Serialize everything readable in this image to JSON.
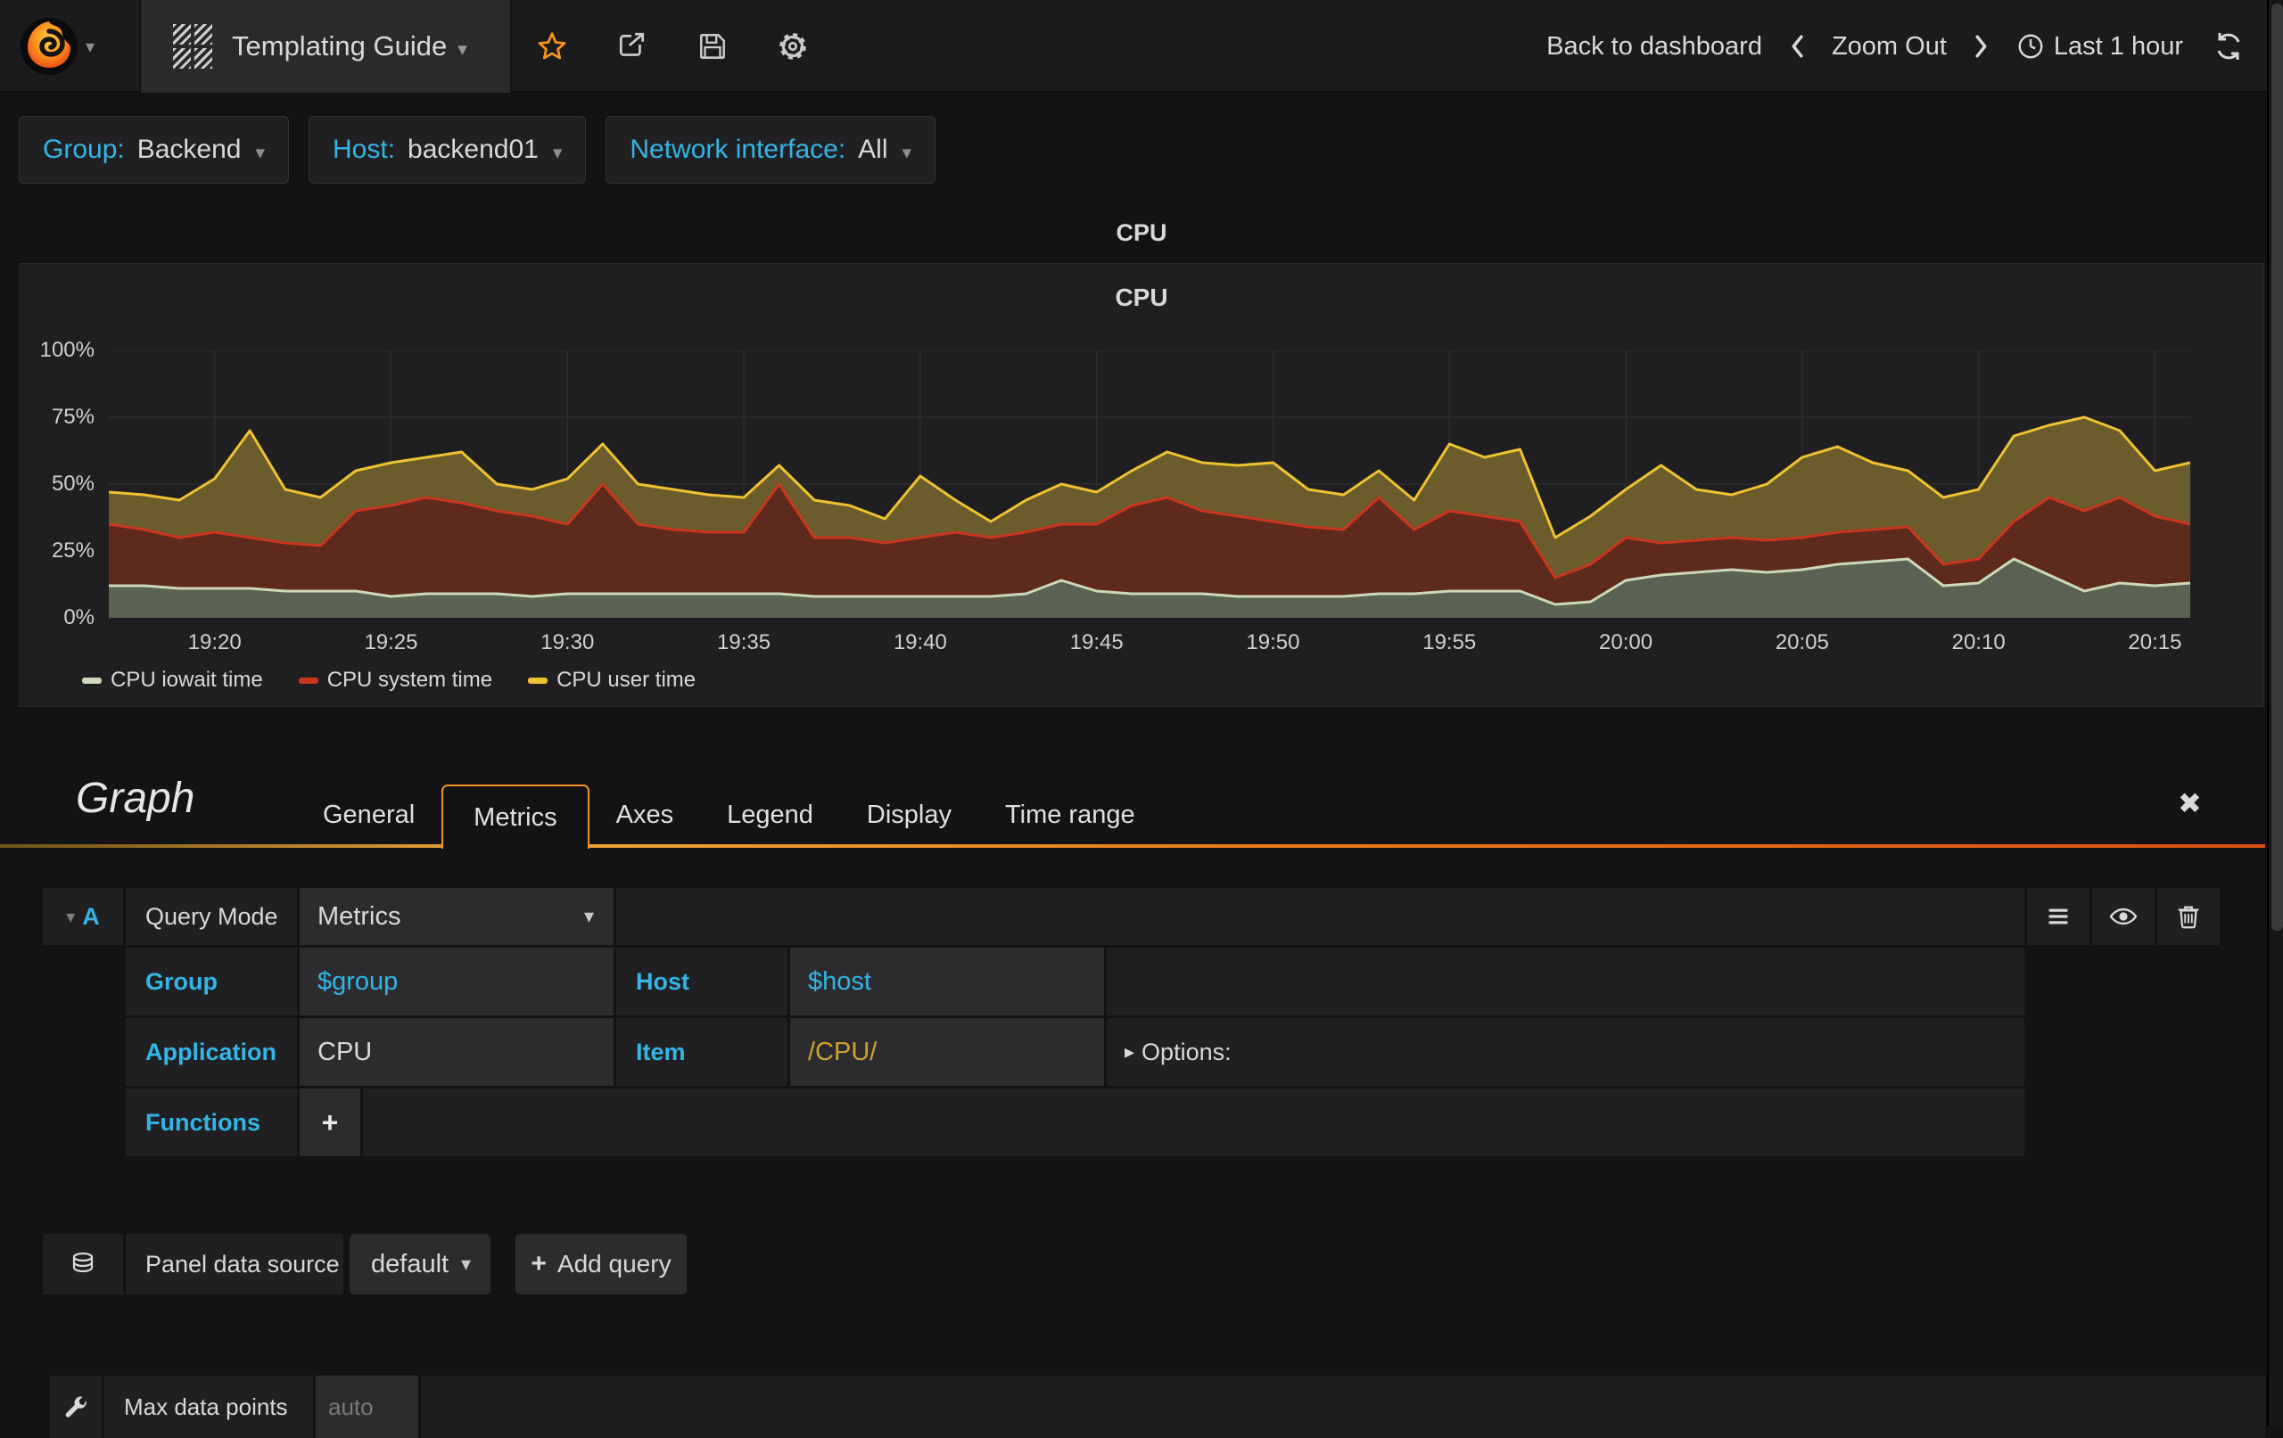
{
  "navbar": {
    "title": "Templating Guide",
    "back_to_dashboard": "Back to dashboard",
    "zoom_out": "Zoom Out",
    "time_range": "Last 1 hour"
  },
  "variables": [
    {
      "label": "Group:",
      "value": "Backend"
    },
    {
      "label": "Host:",
      "value": "backend01"
    },
    {
      "label": "Network interface:",
      "value": "All"
    }
  ],
  "panel": {
    "title": "CPU"
  },
  "chart_data": {
    "type": "area",
    "stacked": true,
    "title": "CPU",
    "ylim": [
      0,
      100
    ],
    "y_unit": "percent",
    "grid": true,
    "legend_position": "bottom",
    "grid_color": "#2d2d2f",
    "axis_color": "#434346",
    "x_range": [
      "19:17",
      "20:16"
    ],
    "x_tick_labels": [
      "19:20",
      "19:25",
      "19:30",
      "19:35",
      "19:40",
      "19:45",
      "19:50",
      "19:55",
      "20:00",
      "20:05",
      "20:10",
      "20:15"
    ],
    "x_tick_offsets_min": [
      3,
      8,
      13,
      18,
      23,
      28,
      33,
      38,
      43,
      48,
      53,
      58
    ],
    "y_ticks": [
      "0%",
      "25%",
      "50%",
      "75%",
      "100%"
    ],
    "series": [
      {
        "name": "CPU iowait time",
        "line": "#cdd9b9",
        "fill": "#5a6351",
        "values": [
          12,
          12,
          11,
          11,
          11,
          10,
          10,
          10,
          8,
          9,
          9,
          9,
          8,
          9,
          9,
          9,
          9,
          9,
          9,
          9,
          8,
          8,
          8,
          8,
          8,
          8,
          9,
          14,
          10,
          9,
          9,
          9,
          8,
          8,
          8,
          8,
          9,
          9,
          10,
          10,
          10,
          5,
          6,
          14,
          16,
          17,
          18,
          17,
          18,
          20,
          21,
          22,
          12,
          13,
          22,
          16,
          10,
          13,
          12,
          13
        ]
      },
      {
        "name": "CPU system time",
        "line": "#c9361d",
        "fill": "#5f2a1e",
        "values": [
          23,
          21,
          19,
          21,
          19,
          18,
          17,
          30,
          34,
          36,
          34,
          31,
          30,
          26,
          41,
          26,
          24,
          23,
          23,
          41,
          22,
          22,
          20,
          22,
          24,
          22,
          23,
          21,
          25,
          33,
          36,
          31,
          30,
          28,
          26,
          25,
          36,
          24,
          30,
          28,
          26,
          10,
          14,
          16,
          12,
          12,
          12,
          12,
          12,
          12,
          12,
          12,
          8,
          9,
          14,
          29,
          30,
          32,
          26,
          22
        ]
      },
      {
        "name": "CPU user time",
        "line": "#eec231",
        "fill": "#6a5c2b",
        "values": [
          12,
          13,
          14,
          20,
          40,
          20,
          18,
          15,
          16,
          15,
          19,
          10,
          10,
          17,
          15,
          15,
          15,
          14,
          13,
          7,
          14,
          12,
          9,
          23,
          12,
          6,
          12,
          15,
          12,
          13,
          17,
          18,
          19,
          22,
          14,
          13,
          10,
          11,
          25,
          22,
          27,
          15,
          18,
          18,
          29,
          19,
          16,
          21,
          30,
          32,
          25,
          21,
          25,
          26,
          32,
          27,
          35,
          25,
          17,
          23
        ]
      }
    ]
  },
  "editor": {
    "panel_type": "Graph",
    "tabs": [
      "General",
      "Metrics",
      "Axes",
      "Legend",
      "Display",
      "Time range"
    ],
    "active_tab": "Metrics"
  },
  "query": {
    "ref": "A",
    "mode_label": "Query Mode",
    "mode_value": "Metrics",
    "group_label": "Group",
    "group_value": "$group",
    "host_label": "Host",
    "host_value": "$host",
    "application_label": "Application",
    "application_value": "CPU",
    "item_label": "Item",
    "item_value": "/CPU/",
    "options_label": "Options:",
    "functions_label": "Functions"
  },
  "datasource": {
    "label": "Panel data source",
    "value": "default",
    "add_query_label": "Add query"
  },
  "footer": {
    "max_data_points_label": "Max data points",
    "max_data_points_placeholder": "auto"
  },
  "icons": {
    "caret_down": "▾",
    "caret_right": "▸",
    "close": "✖",
    "plus": "+"
  },
  "colors": {
    "accent_cyan": "#33b5e5",
    "accent_orange": "#f6931e",
    "item_gold": "#cfa32b",
    "tab_border_orange": "#ec9324"
  }
}
